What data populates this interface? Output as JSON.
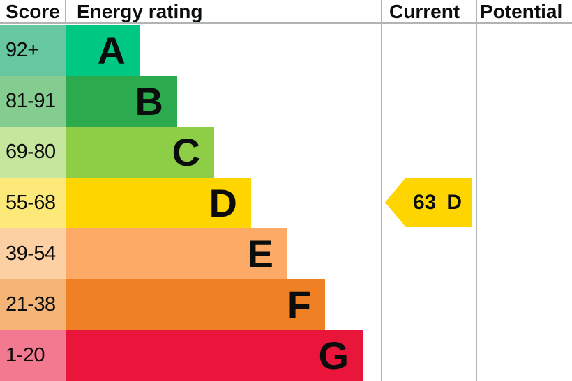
{
  "header": {
    "score": "Score",
    "energy_rating": "Energy rating",
    "current": "Current",
    "potential": "Potential"
  },
  "chart_data": {
    "type": "bar",
    "title": "Energy rating",
    "columns": [
      "Score",
      "Energy rating",
      "Current",
      "Potential"
    ],
    "bands": [
      {
        "letter": "A",
        "score_range": "92+",
        "bar_color": "#00c781",
        "score_bg": "#66c7a0"
      },
      {
        "letter": "B",
        "score_range": "81-91",
        "bar_color": "#2cab4e",
        "score_bg": "#85cc90"
      },
      {
        "letter": "C",
        "score_range": "69-80",
        "bar_color": "#8dce46",
        "score_bg": "#c6e69e"
      },
      {
        "letter": "D",
        "score_range": "55-68",
        "bar_color": "#ffd500",
        "score_bg": "#fde97a"
      },
      {
        "letter": "E",
        "score_range": "39-54",
        "bar_color": "#fcaa65",
        "score_bg": "#fcd0a2"
      },
      {
        "letter": "F",
        "score_range": "21-38",
        "bar_color": "#ef8023",
        "score_bg": "#f5b577"
      },
      {
        "letter": "G",
        "score_range": "1-20",
        "bar_color": "#e9153b",
        "score_bg": "#f2798f"
      }
    ],
    "current": {
      "value": "63",
      "letter": "D",
      "arrow_color": "#ffd500"
    },
    "potential": {
      "value": "",
      "letter": ""
    }
  },
  "colors": {
    "grid_line": "#b1b4b6",
    "text": "#0b0c0c",
    "background": "#ffffff"
  }
}
